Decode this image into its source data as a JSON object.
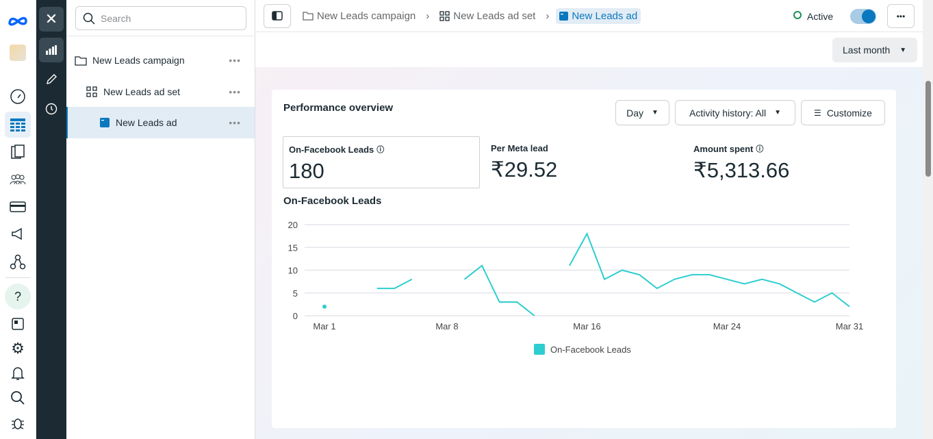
{
  "search": {
    "placeholder": "Search"
  },
  "tree": [
    {
      "label": "New Leads campaign",
      "icon": "folder-icon"
    },
    {
      "label": "New Leads ad set",
      "icon": "grid-icon"
    },
    {
      "label": "New Leads ad",
      "icon": "ad-icon"
    }
  ],
  "breadcrumb": [
    "New Leads campaign",
    "New Leads ad set",
    "New Leads ad"
  ],
  "status": "Active",
  "date_range": "Last month",
  "panel": {
    "title": "Performance overview",
    "granularity": "Day",
    "activity": "Activity history: All",
    "customize": "Customize",
    "metrics": [
      {
        "label": "On-Facebook Leads",
        "value": "180",
        "info": true
      },
      {
        "label": "Per Meta lead",
        "value": "₹29.52",
        "info": false
      },
      {
        "label": "Amount spent",
        "value": "₹5,313.66",
        "info": true
      }
    ]
  },
  "colors": {
    "accent": "#0a78be",
    "line": "#2ecdd0"
  },
  "chart_data": {
    "type": "line",
    "title": "On-Facebook Leads",
    "x": [
      1,
      2,
      3,
      4,
      5,
      6,
      7,
      8,
      9,
      10,
      11,
      12,
      13,
      14,
      15,
      16,
      17,
      18,
      19,
      20,
      21,
      22,
      23,
      24,
      25,
      26,
      27,
      28,
      29,
      30,
      31
    ],
    "xticks": [
      {
        "day": 1,
        "label": "Mar 1"
      },
      {
        "day": 8,
        "label": "Mar 8"
      },
      {
        "day": 16,
        "label": "Mar 16"
      },
      {
        "day": 24,
        "label": "Mar 24"
      },
      {
        "day": 31,
        "label": "Mar 31"
      }
    ],
    "series": [
      {
        "name": "On-Facebook Leads",
        "values": [
          2,
          null,
          null,
          6,
          6,
          8,
          null,
          null,
          8,
          11,
          3,
          3,
          0,
          null,
          11,
          18,
          8,
          10,
          9,
          6,
          8,
          9,
          9,
          8,
          7,
          8,
          7,
          5,
          3,
          5,
          2
        ]
      }
    ],
    "ylim": [
      0,
      20
    ],
    "yticks": [
      "0",
      "5",
      "10",
      "15",
      "20"
    ],
    "legend": "bottom",
    "grid": true
  }
}
